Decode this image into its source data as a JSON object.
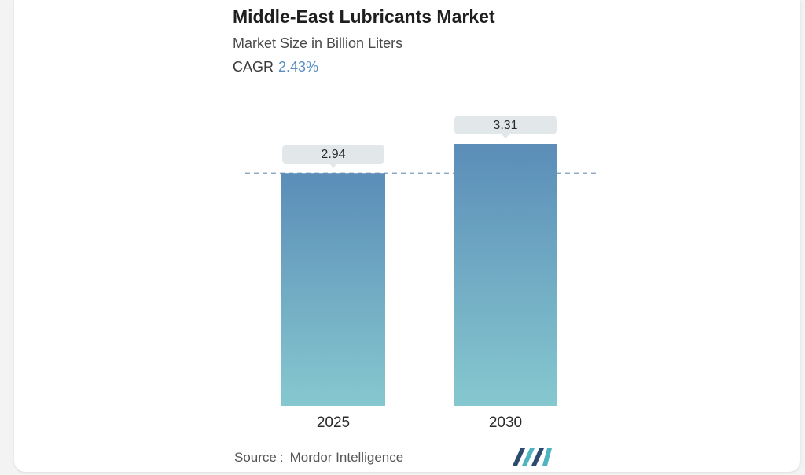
{
  "header": {
    "title": "Middle-East Lubricants Market",
    "subtitle": "Market Size in Billion Liters",
    "cagr_label": "CAGR",
    "cagr_value": "2.43%"
  },
  "footer": {
    "source_label": "Source",
    "source_separator": ":",
    "source_name": "Mordor Intelligence",
    "logo_icon": "mordor-intelligence-logo-icon"
  },
  "colors": {
    "bar_top": "#5b8db8",
    "bar_bottom": "#86c8cf",
    "label_box": "#e2e8ea",
    "reference_line": "#7f9bb8",
    "cagr_accent": "#5b8fc1",
    "logo_dark": "#2c4a6e",
    "logo_teal": "#4fb3c0"
  },
  "chart_data": {
    "type": "bar",
    "categories": [
      "2025",
      "2030"
    ],
    "values": [
      2.94,
      3.31
    ],
    "value_labels": [
      "2.94",
      "3.31"
    ],
    "title": "Middle-East Lubricants Market",
    "subtitle": "Market Size in Billion Liters",
    "ylabel": "",
    "xlabel": "",
    "grid": false,
    "legend": "none",
    "reference_line_at": 2.94
  }
}
